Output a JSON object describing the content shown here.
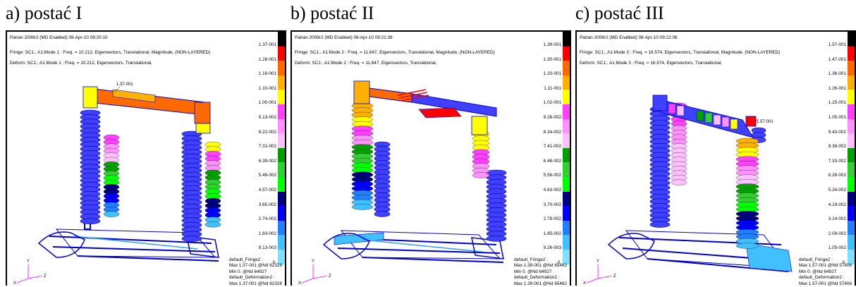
{
  "panels": [
    {
      "caption": "a) postać I",
      "header_line1": "Patran 2008r2 (MD Enabled) 08-Apr-10 09:20:10",
      "header_line2": "Fringe: SC1:, A1:Mode 1 : Freq. = 10.212, Eigenvectors, Translational, Magnitude, (NON-LAYERED)",
      "header_line3": "Deform: SC1:, A1:Mode 1 : Freq. = 10.212, Eigenvectors, Translational,",
      "max_marker": "1.37-001",
      "scale_labels": [
        "1.37-001",
        "1.28-001",
        "1.19-001",
        "1.10-001",
        "1.00-001",
        "9.13-002",
        "8.22-002",
        "7.31-002",
        "6.39-002",
        "5.48-002",
        "4.57-002",
        "3.65-002",
        "2.74-002",
        "1.83-002",
        "9.13-003",
        "0."
      ],
      "footer": [
        "default_Fringe2 :",
        "Max 1.37-001 @Nd 62328",
        "Min 0. @Nd 64927",
        "default_Deformation2 :",
        "Max 1.37-001 @Nd 62328"
      ]
    },
    {
      "caption": "b) postać II",
      "header_line1": "Patran 2008r2 (MD Enabled) 08-Apr-10 09:21:38",
      "header_line2": "Fringe: SC1:, A1:Mode 2 : Freq. = 11.647, Eigenvectors, Translational, Magnitude, (NON-LAYERED)",
      "header_line3": "Deform: SC1:, A1:Mode 2 : Freq. = 11.647, Eigenvectors, Translational,",
      "max_marker": "",
      "scale_labels": [
        "1.39-001",
        "1.30-001",
        "1.20-001",
        "1.11-001",
        "1.02-001",
        "9.26-002",
        "8.34-002",
        "7.41-002",
        "6.48-002",
        "5.56-002",
        "4.63-002",
        "3.70-002",
        "2.78-002",
        "1.85-002",
        "9.26-003",
        "0."
      ],
      "footer": [
        "default_Fringe2 :",
        "Max 1.39-001 @Nd 65462",
        "Min 0. @Nd 64927",
        "default_Deformation2 :",
        "Max 1.39-001 @Nd 65462"
      ]
    },
    {
      "caption": "c) postać III",
      "header_line1": "Patran 2008r2 (MD Enabled) 08-Apr-10 09:22:08",
      "header_line2": "Fringe: SC1:, A1:Mode 3 : Freq. = 16.574, Eigenvectors, Translational, Magnitude, (NON-LAYERED)",
      "header_line3": "Deform: SC1:, A1:Mode 3 : Freq. = 16.574, Eigenvectors, Translational,",
      "max_marker": "1.57-001",
      "scale_labels": [
        "1.57-001",
        "1.47-001",
        "1.36-001",
        "1.26-001",
        "1.15-001",
        "1.05-001",
        "9.43-002",
        "8.38-002",
        "7.33-002",
        "6.28-002",
        "5.24-002",
        "4.19-002",
        "3.14-002",
        "2.09-002",
        "1.05-002",
        "0."
      ],
      "footer": [
        "default_Fringe2 :",
        "Max 1.57-001 @Nd 57406",
        "Min 0. @Nd 64927",
        "default_Deformation2 :",
        "Max 1.57-001 @Nd 57406"
      ]
    }
  ],
  "triad_labels": {
    "x": "X",
    "y": "Y",
    "z": "Z"
  },
  "scale_colors": [
    "#000000",
    "#ff0000",
    "#ff6a00",
    "#ffb000",
    "#ffff00",
    "#ff40ff",
    "#ff90ff",
    "#ffc0ff",
    "#00a000",
    "#30d030",
    "#00ff00",
    "#000080",
    "#0000ff",
    "#2080ff",
    "#40c0ff",
    "#80e0ff"
  ],
  "colors": {
    "mesh": "#0000cc",
    "frame": "#000000",
    "background": "#ffffff"
  }
}
